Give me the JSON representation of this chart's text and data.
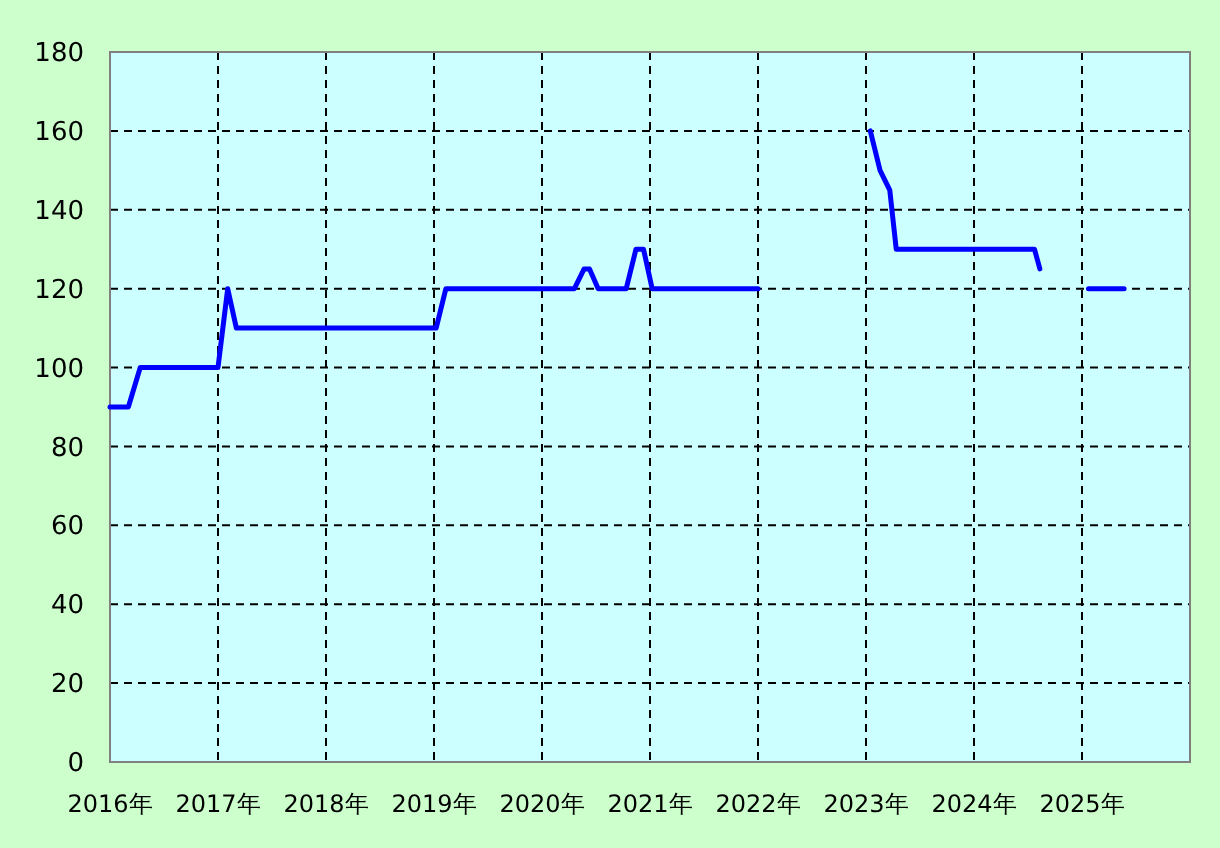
{
  "chart_data": {
    "type": "line",
    "x": [
      2016,
      2016.17,
      2016.28,
      2017.0,
      2017.09,
      2017.17,
      2019.02,
      2019.11,
      2020.3,
      2020.39,
      2020.44,
      2020.52,
      2020.78,
      2020.87,
      2020.94,
      2021.02,
      2022.0,
      2022.5,
      2023.04,
      2023.13,
      2023.22,
      2023.28,
      2024.56,
      2024.61,
      2024.8,
      2025.06,
      2025.39
    ],
    "series": [
      {
        "color": "#0000ff",
        "values": [
          90,
          90,
          100,
          100,
          120,
          110,
          110,
          120,
          120,
          125,
          125,
          120,
          120,
          130,
          130,
          120,
          120,
          null,
          160,
          150,
          145,
          130,
          130,
          125,
          null,
          120,
          120
        ]
      }
    ],
    "xlim": [
      2016,
      2026
    ],
    "xticks": [
      {
        "value": 2016,
        "label": "2016年"
      },
      {
        "value": 2017,
        "label": "2017年"
      },
      {
        "value": 2018,
        "label": "2018年"
      },
      {
        "value": 2019,
        "label": "2019年"
      },
      {
        "value": 2020,
        "label": "2020年"
      },
      {
        "value": 2021,
        "label": "2021年"
      },
      {
        "value": 2022,
        "label": "2022年"
      },
      {
        "value": 2023,
        "label": "2023年"
      },
      {
        "value": 2024,
        "label": "2024年"
      },
      {
        "value": 2025,
        "label": "2025年"
      }
    ],
    "ylim": [
      0,
      180
    ],
    "yticks": [
      0,
      20,
      40,
      60,
      80,
      100,
      120,
      140,
      160,
      180
    ],
    "grid": true
  }
}
